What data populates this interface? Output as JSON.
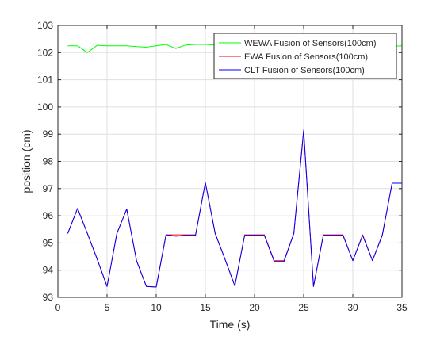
{
  "chart_data": {
    "type": "line",
    "title": "",
    "xlabel": "Time (s)",
    "ylabel": "position (cm)",
    "xlim": [
      0,
      35
    ],
    "ylim": [
      93,
      103
    ],
    "xticks": [
      "0",
      "5",
      "10",
      "15",
      "20",
      "25",
      "30",
      "35"
    ],
    "yticks": [
      "93",
      "94",
      "95",
      "96",
      "97",
      "98",
      "99",
      "100",
      "101",
      "102",
      "103"
    ],
    "grid": true,
    "legend_position": "top-right",
    "x": [
      1,
      2,
      3,
      4,
      5,
      6,
      7,
      8,
      9,
      10,
      11,
      12,
      13,
      14,
      15,
      16,
      17,
      18,
      19,
      20,
      21,
      22,
      23,
      24,
      25,
      26,
      27,
      28,
      29,
      30,
      31,
      32,
      33,
      34,
      35
    ],
    "series": [
      {
        "name": "WEWA Fusion of Sensors(100cm)",
        "color": "#00ff00",
        "values": [
          102.25,
          102.25,
          102.0,
          102.27,
          102.25,
          102.25,
          102.25,
          102.22,
          102.2,
          102.25,
          102.3,
          102.15,
          102.28,
          102.3,
          102.3,
          102.28,
          102.28,
          102.27,
          102.27,
          102.27,
          102.26,
          102.26,
          102.25,
          102.25,
          102.25,
          102.23,
          102.25,
          102.25,
          102.25,
          102.23,
          102.25,
          102.25,
          102.23,
          102.23,
          102.25
        ]
      },
      {
        "name": "EWA Fusion of Sensors(100cm)",
        "color": "#ff0000",
        "values": [
          95.35,
          96.27,
          95.35,
          94.4,
          93.4,
          95.35,
          96.25,
          94.35,
          93.4,
          93.38,
          95.3,
          95.3,
          95.3,
          95.3,
          97.22,
          95.35,
          94.4,
          93.42,
          95.3,
          95.3,
          95.3,
          94.35,
          94.35,
          95.35,
          99.1,
          93.4,
          95.3,
          95.3,
          95.3,
          94.35,
          95.3,
          94.35,
          95.3,
          97.2,
          97.2
        ]
      },
      {
        "name": "CLT Fusion of Sensors(100cm)",
        "color": "#0000ff",
        "values": [
          95.35,
          96.27,
          95.35,
          94.4,
          93.4,
          95.35,
          96.25,
          94.35,
          93.4,
          93.38,
          95.3,
          95.25,
          95.28,
          95.28,
          97.22,
          95.35,
          94.4,
          93.42,
          95.28,
          95.28,
          95.28,
          94.32,
          94.32,
          95.35,
          99.15,
          93.4,
          95.28,
          95.28,
          95.28,
          94.35,
          95.28,
          94.35,
          95.28,
          97.2,
          97.2
        ]
      }
    ]
  }
}
